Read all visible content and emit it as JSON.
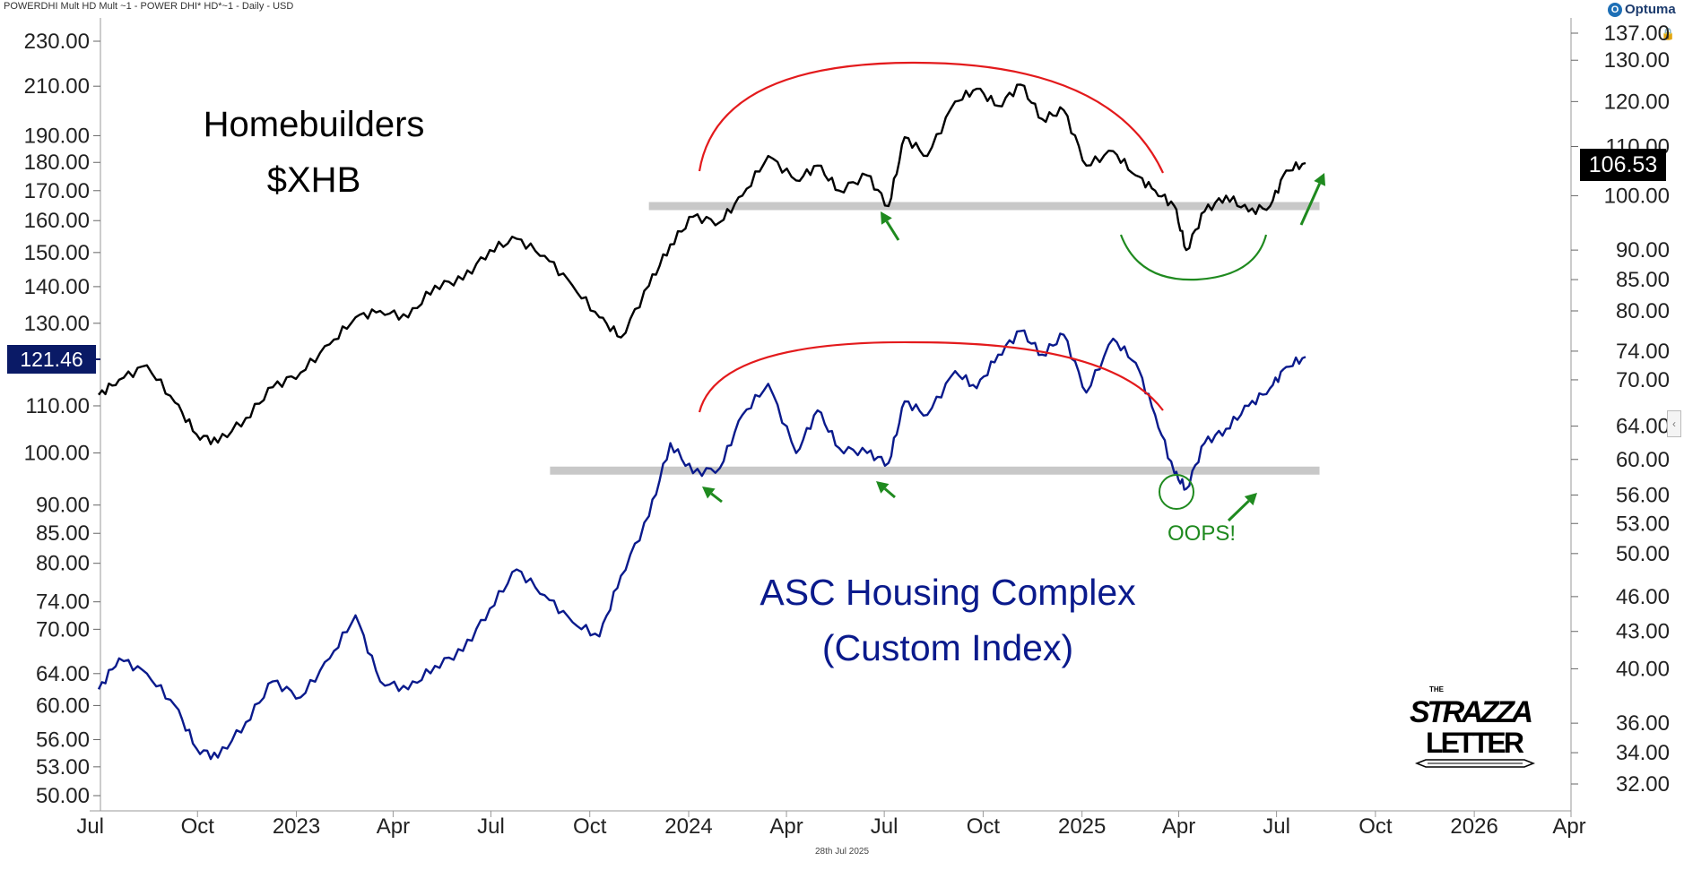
{
  "header": {
    "title": "POWERDHI Mult HD Mult ~1 - POWER DHI* HD*~1 - Daily - USD",
    "logo": "Optuma"
  },
  "footer": {
    "date": "28th Jul 2025"
  },
  "tags": {
    "left_price": "121.46",
    "right_price": "106.53"
  },
  "watermark": {
    "top": "THE",
    "line1": "STRAZZA",
    "line2": "LETTER"
  },
  "annotations": {
    "oops": "OOPS!",
    "colors": {
      "arc_red": "#e31a1c",
      "arc_green": "#1f8a1f",
      "arrow_green": "#1f8a1f",
      "support_line": "#c8c8c8"
    }
  },
  "chart_data": {
    "type": "line",
    "x_ticks": [
      "Jul",
      "Oct",
      "2023",
      "Apr",
      "Jul",
      "Oct",
      "2024",
      "Apr",
      "Jul",
      "Oct",
      "2025",
      "Apr",
      "Jul",
      "Oct",
      "2026",
      "Apr"
    ],
    "x_range": [
      "2022-07",
      "2026-04"
    ],
    "left_axis": {
      "scale": "log",
      "ticks": [
        "230.00",
        "210.00",
        "190.00",
        "180.00",
        "170.00",
        "160.00",
        "150.00",
        "140.00",
        "130.00",
        "110.00",
        "100.00",
        "90.00",
        "85.00",
        "80.00",
        "74.00",
        "70.00",
        "64.00",
        "60.00",
        "56.00",
        "53.00",
        "50.00"
      ],
      "range": [
        50,
        230
      ]
    },
    "right_axis": {
      "scale": "log",
      "ticks": [
        "137.00",
        "130.00",
        "120.00",
        "110.00",
        "100.00",
        "90.00",
        "85.00",
        "80.00",
        "74.00",
        "70.00",
        "64.00",
        "60.00",
        "56.00",
        "53.00",
        "50.00",
        "46.00",
        "43.00",
        "40.00",
        "36.00",
        "34.00",
        "32.00"
      ],
      "range": [
        32,
        137
      ]
    },
    "series": [
      {
        "name": "Homebuilders $XHB",
        "label_line1": "Homebuilders",
        "label_line2": "$XHB",
        "color": "#000000",
        "axis": "right",
        "dates": [
          "2022-07-01",
          "2022-07-20",
          "2022-08-15",
          "2022-09-10",
          "2022-09-30",
          "2022-10-20",
          "2022-11-15",
          "2022-12-10",
          "2023-01-05",
          "2023-02-01",
          "2023-02-25",
          "2023-03-20",
          "2023-04-15",
          "2023-05-10",
          "2023-06-05",
          "2023-06-30",
          "2023-07-25",
          "2023-08-20",
          "2023-09-15",
          "2023-10-10",
          "2023-10-30",
          "2023-11-25",
          "2023-12-15",
          "2024-01-05",
          "2024-01-30",
          "2024-02-20",
          "2024-03-15",
          "2024-04-10",
          "2024-04-30",
          "2024-05-20",
          "2024-06-15",
          "2024-07-05",
          "2024-07-20",
          "2024-08-10",
          "2024-09-05",
          "2024-09-25",
          "2024-10-15",
          "2024-11-05",
          "2024-11-25",
          "2024-12-15",
          "2025-01-05",
          "2025-01-30",
          "2025-02-20",
          "2025-03-10",
          "2025-03-28",
          "2025-04-08",
          "2025-04-25",
          "2025-05-15",
          "2025-06-05",
          "2025-06-25",
          "2025-07-10",
          "2025-07-28"
        ],
        "values": [
          68,
          70,
          72,
          67,
          63,
          62,
          65,
          69,
          71,
          75,
          79,
          80,
          79,
          84,
          85,
          90,
          92,
          89,
          84,
          79,
          76,
          84,
          91,
          96,
          95,
          100,
          108,
          103,
          106,
          101,
          104,
          98,
          112,
          108,
          120,
          123,
          119,
          124,
          116,
          118,
          106,
          109,
          104,
          101,
          98,
          90,
          97,
          100,
          97,
          98,
          105,
          106.53
        ]
      },
      {
        "name": "ASC Housing Complex (Custom Index)",
        "label_line1": "ASC Housing Complex",
        "label_line2": "(Custom Index)",
        "color": "#0a1a8c",
        "axis": "left",
        "dates": [
          "2022-07-01",
          "2022-07-20",
          "2022-08-15",
          "2022-09-10",
          "2022-09-30",
          "2022-10-20",
          "2022-11-15",
          "2022-12-10",
          "2023-01-05",
          "2023-02-01",
          "2023-02-25",
          "2023-03-20",
          "2023-04-15",
          "2023-05-10",
          "2023-06-05",
          "2023-06-30",
          "2023-07-25",
          "2023-08-20",
          "2023-09-15",
          "2023-10-10",
          "2023-10-30",
          "2023-11-25",
          "2023-12-15",
          "2024-01-05",
          "2024-01-30",
          "2024-02-20",
          "2024-03-15",
          "2024-04-10",
          "2024-04-30",
          "2024-05-20",
          "2024-06-15",
          "2024-07-05",
          "2024-07-20",
          "2024-08-10",
          "2024-09-05",
          "2024-09-25",
          "2024-10-15",
          "2024-11-05",
          "2024-11-25",
          "2024-12-15",
          "2025-01-05",
          "2025-01-30",
          "2025-02-20",
          "2025-03-10",
          "2025-03-28",
          "2025-04-08",
          "2025-04-25",
          "2025-05-15",
          "2025-06-05",
          "2025-06-25",
          "2025-07-10",
          "2025-07-28"
        ],
        "values": [
          62,
          66,
          64,
          60,
          55,
          54,
          58,
          63,
          61,
          66,
          72,
          63,
          62,
          65,
          67,
          73,
          79,
          75,
          71,
          69,
          78,
          88,
          102,
          96,
          97,
          108,
          115,
          100,
          109,
          101,
          100,
          98,
          111,
          108,
          118,
          114,
          122,
          128,
          122,
          127,
          113,
          126,
          120,
          108,
          96,
          93,
          102,
          105,
          110,
          114,
          119,
          121.46
        ]
      }
    ],
    "support_lines": [
      {
        "series": "Homebuilders $XHB",
        "value": 98,
        "from": "2023-11-25",
        "to": "2025-08-10"
      },
      {
        "series": "ASC Housing Complex (Custom Index)",
        "value": 96.5,
        "from": "2023-08-25",
        "to": "2025-08-10"
      }
    ]
  }
}
